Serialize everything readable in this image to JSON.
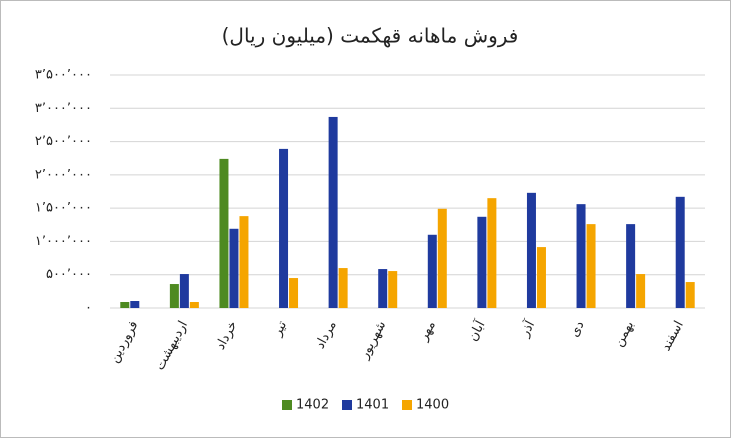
{
  "chart_data": {
    "type": "bar",
    "title": "فروش ماهانه قهکمت (میلیون ریال)",
    "categories": [
      "فروردین",
      "اردیبهشت",
      "خرداد",
      "تیر",
      "مرداد",
      "شهریور",
      "مهر",
      "آبان",
      "آذر",
      "دی",
      "بهمن",
      "اسفند"
    ],
    "series": [
      {
        "name": "1402",
        "color": "#4e8a21",
        "values": [
          90000,
          360000,
          2240000,
          null,
          null,
          null,
          null,
          null,
          null,
          null,
          null,
          null
        ]
      },
      {
        "name": "1401",
        "color": "#1f3a9e",
        "values": [
          105000,
          510000,
          1190000,
          2390000,
          2870000,
          585000,
          1100000,
          1370000,
          1730000,
          1560000,
          1260000,
          1670000
        ]
      },
      {
        "name": "1400",
        "color": "#f5a500",
        "values": [
          null,
          90000,
          1380000,
          450000,
          600000,
          555000,
          1490000,
          1650000,
          915000,
          1260000,
          510000,
          390000
        ]
      }
    ],
    "ylim": [
      0,
      3500000
    ],
    "yticks": [
      {
        "value": 0,
        "label": "۰"
      },
      {
        "value": 500000,
        "label": "۵۰۰٬۰۰۰"
      },
      {
        "value": 1000000,
        "label": "۱٬۰۰۰٬۰۰۰"
      },
      {
        "value": 1500000,
        "label": "۱٬۵۰۰٬۰۰۰"
      },
      {
        "value": 2000000,
        "label": "۲٬۰۰۰٬۰۰۰"
      },
      {
        "value": 2500000,
        "label": "۲٬۵۰۰٬۰۰۰"
      },
      {
        "value": 3000000,
        "label": "۳٬۰۰۰٬۰۰۰"
      },
      {
        "value": 3500000,
        "label": "۳٬۵۰۰٬۰۰۰"
      }
    ],
    "grid": true,
    "legend": "bottom"
  }
}
